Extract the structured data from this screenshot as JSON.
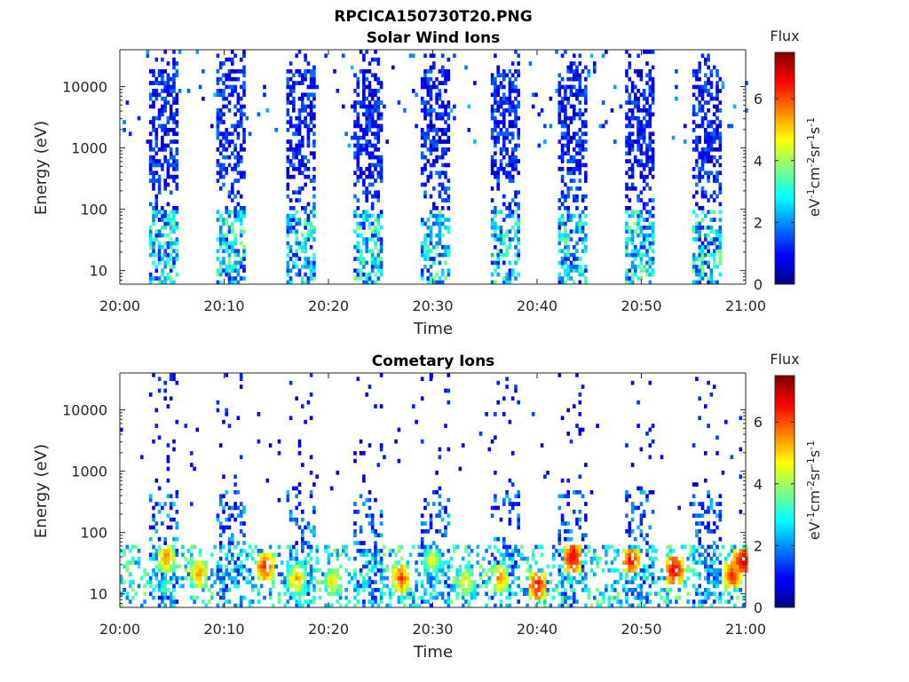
{
  "figure_title": "RPCICA150730T20.PNG",
  "colorbar": {
    "title": "Flux",
    "label_main": "eV",
    "label_parts": [
      {
        "t": "eV",
        "sup": false
      },
      {
        "t": "-1",
        "sup": true
      },
      {
        "t": "cm",
        "sup": false
      },
      {
        "t": "-2",
        "sup": true
      },
      {
        "t": "sr",
        "sup": false
      },
      {
        "t": "-1",
        "sup": true
      },
      {
        "t": "s",
        "sup": false
      },
      {
        "t": "-1",
        "sup": true
      }
    ],
    "range": [
      0,
      7.5
    ],
    "ticks": [
      "0",
      "2",
      "4",
      "6"
    ],
    "colormap": "jet"
  },
  "chart_data": [
    {
      "type": "heatmap",
      "title": "Solar Wind Ions",
      "xlabel": "Time",
      "ylabel": "Energy (eV)",
      "x_ticks": [
        "20:00",
        "20:10",
        "20:20",
        "20:30",
        "20:40",
        "20:50",
        "21:00"
      ],
      "xlim_minutes": [
        0,
        60
      ],
      "y_ticks": [
        "10",
        "100",
        "1000",
        "10000"
      ],
      "y_scale": "log",
      "ylim": [
        6,
        40000
      ],
      "bursts_start_minutes": [
        2.8,
        9.2,
        15.8,
        22.3,
        28.7,
        35.5,
        41.9,
        48.4,
        54.8
      ],
      "burst_width_minutes": 2.7,
      "typical_flux": "0.5-2 at 300-20000 eV, 2-5 below 100 eV"
    },
    {
      "type": "heatmap",
      "title": "Cometary Ions",
      "xlabel": "Time",
      "ylabel": "Energy (eV)",
      "x_ticks": [
        "20:00",
        "20:10",
        "20:20",
        "20:30",
        "20:40",
        "20:50",
        "21:00"
      ],
      "xlim_minutes": [
        0,
        60
      ],
      "y_ticks": [
        "10",
        "100",
        "1000",
        "10000"
      ],
      "y_scale": "log",
      "ylim": [
        6,
        40000
      ],
      "bursts_start_minutes": [
        2.8,
        9.2,
        15.8,
        22.3,
        28.7,
        35.5,
        41.9,
        48.4,
        54.8
      ],
      "hot_spots": [
        {
          "t": 4.3,
          "e": 40,
          "flux": 5.5
        },
        {
          "t": 7.5,
          "e": 22,
          "flux": 5.5
        },
        {
          "t": 13.8,
          "e": 28,
          "flux": 6.2
        },
        {
          "t": 16.8,
          "e": 18,
          "flux": 5.2
        },
        {
          "t": 20.3,
          "e": 16,
          "flux": 4.8
        },
        {
          "t": 26.8,
          "e": 18,
          "flux": 6.0
        },
        {
          "t": 29.8,
          "e": 35,
          "flux": 4.6
        },
        {
          "t": 33.0,
          "e": 16,
          "flux": 4.8
        },
        {
          "t": 36.3,
          "e": 18,
          "flux": 5.5
        },
        {
          "t": 39.9,
          "e": 14,
          "flux": 6.5
        },
        {
          "t": 43.3,
          "e": 40,
          "flux": 6.8
        },
        {
          "t": 48.9,
          "e": 35,
          "flux": 6.5
        },
        {
          "t": 53.0,
          "e": 25,
          "flux": 6.8
        },
        {
          "t": 58.6,
          "e": 20,
          "flux": 6.3
        },
        {
          "t": 59.6,
          "e": 35,
          "flux": 6.8
        }
      ]
    }
  ]
}
